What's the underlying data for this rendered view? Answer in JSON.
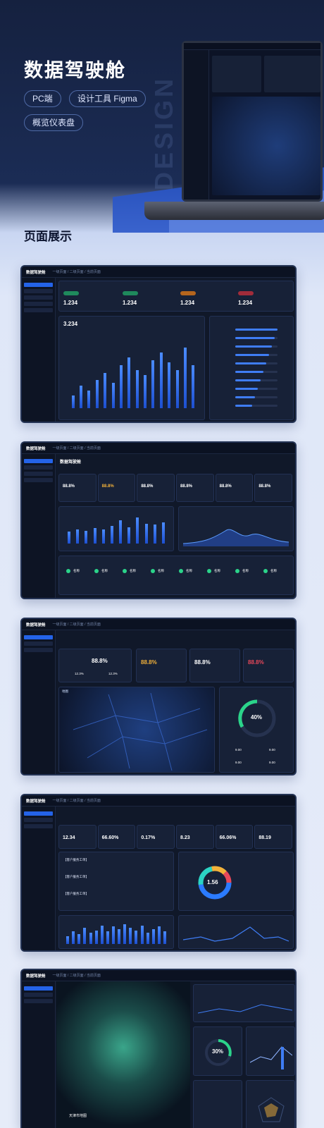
{
  "hero": {
    "title": "数据驾驶舱",
    "tags": [
      "PC端",
      "设计工具 Figma",
      "概览仪表盘"
    ],
    "watermark": "DESIGN"
  },
  "section": {
    "title": "页面展示"
  },
  "app": {
    "logo": "数据驾驶舱",
    "breadcrumb": "一级页面 / 二级页面 / 当前页面",
    "page_title": "数据驾驶舱"
  },
  "screen1": {
    "kpis": [
      {
        "label": "指标名称",
        "value": "1.234",
        "color": "#2bd48a"
      },
      {
        "label": "指标名称",
        "value": "1.234",
        "color": "#2bd48a"
      },
      {
        "label": "指标名称",
        "value": "1.234",
        "color": "#f39a3a"
      },
      {
        "label": "指标名称",
        "value": "1.234",
        "color": "#e8485a"
      }
    ],
    "main_value": "3.234",
    "bars": [
      10,
      18,
      14,
      22,
      28,
      20,
      34,
      40,
      30,
      26,
      38,
      44,
      36,
      30,
      48,
      34
    ],
    "list_rows": 10
  },
  "screen2": {
    "kpis": [
      "88.8%",
      "88.8%",
      "88.8%",
      "88.8%",
      "88.8%",
      "88.8%"
    ],
    "bars": [
      10,
      12,
      11,
      13,
      12,
      15,
      20,
      14,
      22,
      17,
      16,
      18
    ],
    "people": [
      "名称",
      "名称",
      "名称",
      "名称",
      "名称",
      "名称",
      "名称",
      "名称"
    ]
  },
  "screen3": {
    "kpi_big": "88.8%",
    "sub_values": [
      "12.3%",
      "12.3%"
    ],
    "kpis": [
      "88.8%",
      "88.8%",
      "88.8%"
    ],
    "gauge": "40%",
    "gauge_values": [
      "9.00",
      "9.00",
      "9.00",
      "9.00"
    ],
    "map_label": "地图"
  },
  "screen4": {
    "kpis": [
      "12.34",
      "66.60%",
      "0.17%",
      "8.23",
      "66.06%",
      "88.19"
    ],
    "donut_value": "1.56",
    "bars": [
      12,
      20,
      16,
      26,
      18,
      22,
      30,
      20,
      28,
      24,
      32,
      26,
      22,
      30,
      18,
      24,
      28,
      20
    ],
    "events": [
      "【客户服务工单】",
      "【客户服务工单】",
      "【客户服务工单】"
    ]
  },
  "screen5": {
    "gauge": "30%",
    "map_title": "天津市地图"
  }
}
